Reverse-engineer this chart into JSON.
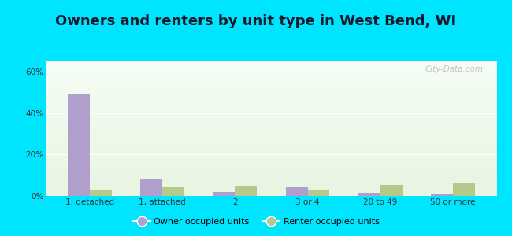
{
  "title": "Owners and renters by unit type in West Bend, WI",
  "categories": [
    "1, detached",
    "1, attached",
    "2",
    "3 or 4",
    "20 to 49",
    "50 or more"
  ],
  "owner_values": [
    49,
    8,
    2,
    4,
    1.5,
    1
  ],
  "renter_values": [
    3,
    4,
    5,
    3,
    5.5,
    6
  ],
  "owner_color": "#b09fcc",
  "renter_color": "#b5c98a",
  "background_outer": "#00e5ff",
  "title_fontsize": 13,
  "ylabel_ticks": [
    "0%",
    "20%",
    "40%",
    "60%"
  ],
  "yticks": [
    0,
    20,
    40,
    60
  ],
  "ylim": [
    0,
    65
  ],
  "bar_width": 0.3,
  "legend_owner": "Owner occupied units",
  "legend_renter": "Renter occupied units",
  "watermark": "City-Data.com"
}
